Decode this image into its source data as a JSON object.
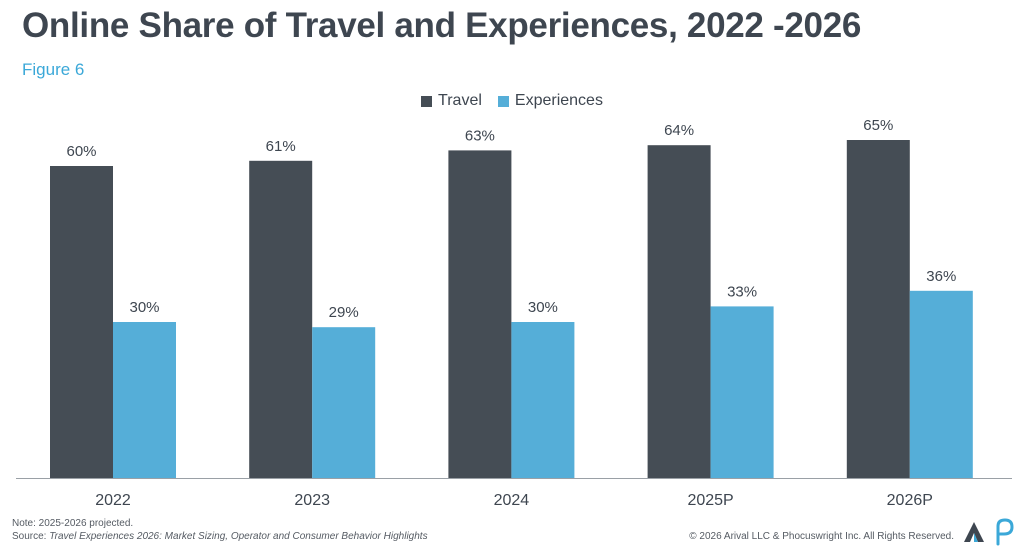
{
  "header": {
    "title": "Online Share of Travel and Experiences, 2022 -2026",
    "figure_label": "Figure 6"
  },
  "footer": {
    "note": "Note: 2025-2026 projected.",
    "source_prefix": "Source:",
    "source_title": "Travel Experiences 2026: Market Sizing, Operator and Consumer Behavior Highlights",
    "copyright": "© 2026 Arival LLC & Phocuswright Inc. All Rights Reserved."
  },
  "colors": {
    "travel": "#454d55",
    "experiences": "#55aed8",
    "text": "#3e4650",
    "accent": "#3ba8d8"
  },
  "chart_data": {
    "type": "bar",
    "categories": [
      "2022",
      "2023",
      "2024",
      "2025P",
      "2026P"
    ],
    "series": [
      {
        "name": "Travel",
        "values": [
          60,
          61,
          63,
          64,
          65
        ],
        "labels": [
          "60%",
          "61%",
          "63%",
          "64%",
          "65%"
        ]
      },
      {
        "name": "Experiences",
        "values": [
          30,
          29,
          30,
          33,
          36
        ],
        "labels": [
          "30%",
          "29%",
          "30%",
          "33%",
          "36%"
        ]
      }
    ],
    "ylim": [
      0,
      100
    ],
    "legend": "top-center",
    "grid": false
  }
}
